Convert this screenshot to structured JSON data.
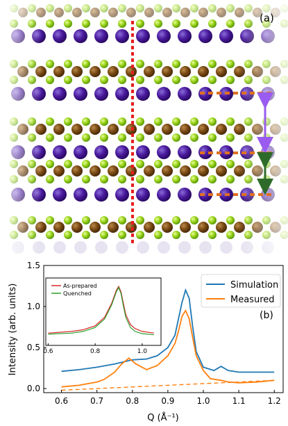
{
  "panel_a": {
    "label": "(a)"
  },
  "panel_b": {
    "label": "(b)"
  },
  "chart_data": [
    {
      "type": "line",
      "panel": "(b)",
      "xlabel": "Q (Å⁻¹)",
      "ylabel": "Intensity (arb. units)",
      "xlim": [
        0.55,
        1.225
      ],
      "ylim": [
        -0.05,
        1.5
      ],
      "xticks": [
        0.6,
        0.7,
        0.8,
        0.9,
        1.0,
        1.1,
        1.2
      ],
      "xtick_labels": [
        "0.6",
        "0.7",
        "0.8",
        "0.9",
        "1.0",
        "1.1",
        "1.2"
      ],
      "yticks": [
        0.0,
        0.5,
        1.0,
        1.5
      ],
      "ytick_labels": [
        "0.0",
        "0.5",
        "1.0",
        "1.5"
      ],
      "legend_position": "upper right",
      "series": [
        {
          "name": "Simulation",
          "color": "#1f77b4",
          "x": [
            0.6,
            0.65,
            0.7,
            0.75,
            0.78,
            0.8,
            0.84,
            0.87,
            0.9,
            0.92,
            0.93,
            0.94,
            0.95,
            0.96,
            0.97,
            0.98,
            1.0,
            1.03,
            1.05,
            1.07,
            1.1,
            1.15,
            1.2
          ],
          "y": [
            0.21,
            0.23,
            0.26,
            0.3,
            0.33,
            0.35,
            0.36,
            0.4,
            0.5,
            0.65,
            0.85,
            1.05,
            1.2,
            1.1,
            0.75,
            0.45,
            0.26,
            0.22,
            0.27,
            0.22,
            0.2,
            0.2,
            0.2
          ]
        },
        {
          "name": "Measured",
          "color": "#ff7f0e",
          "x": [
            0.6,
            0.65,
            0.7,
            0.72,
            0.75,
            0.77,
            0.79,
            0.81,
            0.84,
            0.87,
            0.9,
            0.92,
            0.93,
            0.94,
            0.95,
            0.96,
            0.97,
            0.98,
            1.0,
            1.02,
            1.05,
            1.07,
            1.1,
            1.15,
            1.2
          ],
          "y": [
            0.02,
            0.04,
            0.08,
            0.11,
            0.2,
            0.3,
            0.37,
            0.3,
            0.23,
            0.28,
            0.4,
            0.55,
            0.7,
            0.88,
            0.95,
            0.85,
            0.62,
            0.4,
            0.22,
            0.12,
            0.1,
            0.08,
            0.07,
            0.08,
            0.1
          ]
        },
        {
          "name": "",
          "style": "dashed",
          "color": "#ff7f0e",
          "x": [
            0.6,
            1.2
          ],
          "y": [
            -0.02,
            0.1
          ]
        }
      ]
    },
    {
      "type": "line",
      "panel": "inset",
      "xlim": [
        0.59,
        1.08
      ],
      "xticks": [
        0.6,
        0.8,
        1.0
      ],
      "xtick_labels": [
        "0.6",
        "0.8",
        "1.0"
      ],
      "legend_position": "upper left",
      "series": [
        {
          "name": "As-prepared",
          "color": "#d62728",
          "x": [
            0.6,
            0.7,
            0.75,
            0.8,
            0.84,
            0.87,
            0.89,
            0.9,
            0.91,
            0.92,
            0.93,
            0.95,
            0.97,
            1.0,
            1.05
          ],
          "y": [
            0.12,
            0.15,
            0.18,
            0.25,
            0.4,
            0.65,
            0.88,
            0.95,
            0.85,
            0.65,
            0.45,
            0.27,
            0.2,
            0.15,
            0.12
          ]
        },
        {
          "name": "Quenched",
          "color": "#2ca02c",
          "x": [
            0.6,
            0.7,
            0.75,
            0.8,
            0.84,
            0.87,
            0.89,
            0.9,
            0.91,
            0.92,
            0.93,
            0.95,
            0.97,
            1.0,
            1.05
          ],
          "y": [
            0.1,
            0.12,
            0.15,
            0.22,
            0.37,
            0.62,
            0.85,
            0.93,
            0.82,
            0.6,
            0.4,
            0.22,
            0.15,
            0.11,
            0.09
          ]
        }
      ]
    }
  ]
}
